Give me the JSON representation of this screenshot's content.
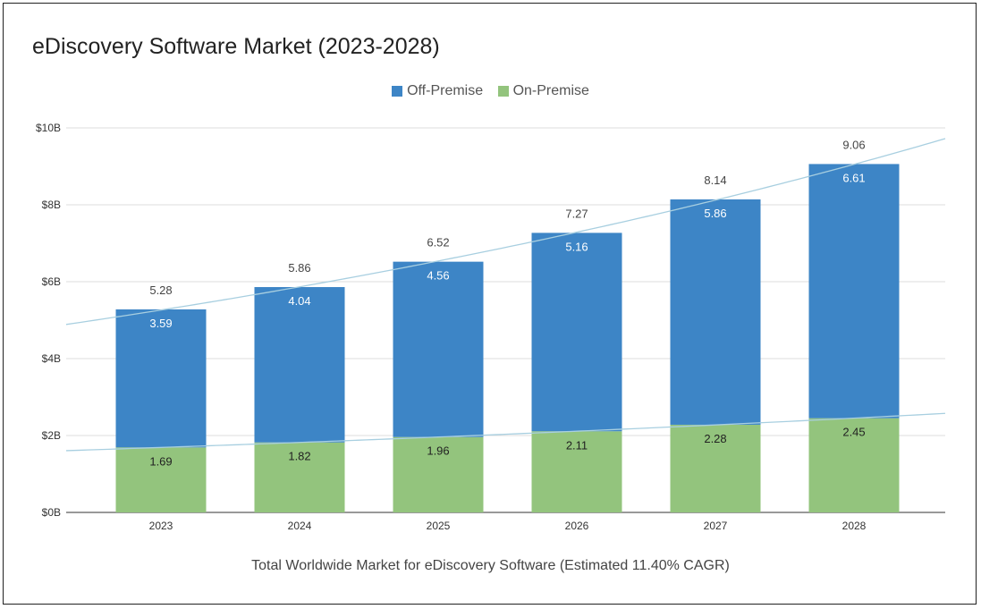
{
  "chart_data": {
    "type": "bar",
    "stacked": true,
    "title": "eDiscovery Software Market (2023-2028)",
    "xlabel": "Total Worldwide Market for eDiscovery Software (Estimated 11.40% CAGR)",
    "ylabel": "",
    "categories": [
      "2023",
      "2024",
      "2025",
      "2026",
      "2027",
      "2028"
    ],
    "series": [
      {
        "name": "On-Premise",
        "color": "#93c47d",
        "values": [
          1.69,
          1.82,
          1.96,
          2.11,
          2.28,
          2.45
        ]
      },
      {
        "name": "Off-Premise",
        "color": "#3d85c6",
        "values": [
          3.59,
          4.04,
          4.56,
          5.16,
          5.86,
          6.61
        ]
      }
    ],
    "totals": [
      "5.28",
      "5.86",
      "6.52",
      "7.27",
      "8.14",
      "9.06"
    ],
    "ylim": [
      0,
      10
    ],
    "yticks": [
      0,
      2,
      4,
      6,
      8,
      10
    ],
    "ytick_labels": [
      "$0B",
      "$2B",
      "$4B",
      "$6B",
      "$8B",
      "$10B"
    ],
    "grid": true,
    "legend": {
      "position": "top",
      "order": [
        "Off-Premise",
        "On-Premise"
      ]
    },
    "trendlines": [
      {
        "applies_to": "total",
        "type": "exponential",
        "color": "#a8cfe0"
      },
      {
        "applies_to": "On-Premise",
        "type": "exponential",
        "color": "#a8cfe0"
      }
    ]
  }
}
